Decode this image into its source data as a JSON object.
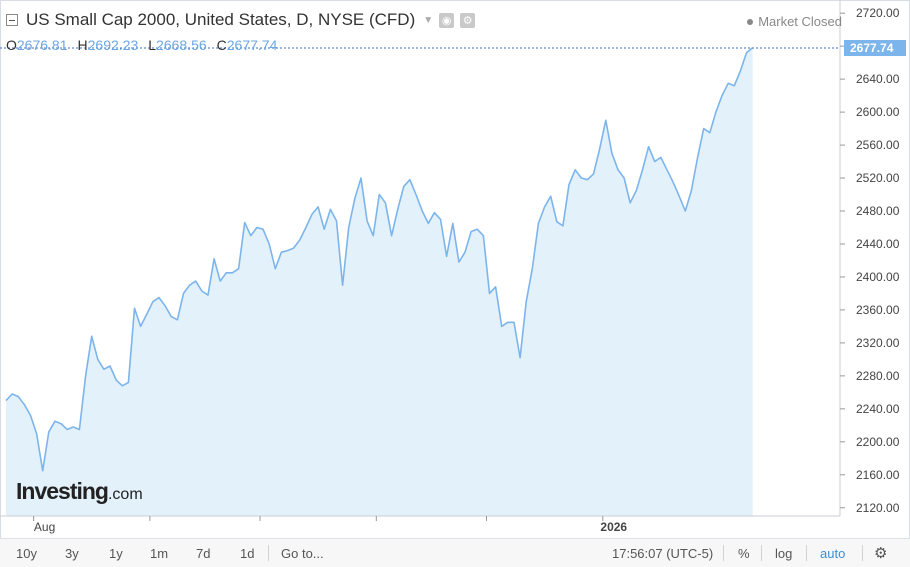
{
  "header": {
    "title": "US Small Cap 2000, United States, D, NYSE (CFD)",
    "market_status": "Market Closed",
    "ohlc": [
      {
        "key": "O",
        "value": "2676.81"
      },
      {
        "key": "H",
        "value": "2692.23"
      },
      {
        "key": "L",
        "value": "2668.56"
      },
      {
        "key": "C",
        "value": "2677.74"
      }
    ]
  },
  "logo": {
    "main": "Investing",
    "suffix": ".com"
  },
  "toolbar": {
    "ranges": [
      "10y",
      "3y",
      "1y",
      "1m",
      "7d",
      "1d"
    ],
    "goto_label": "Go to...",
    "time": "17:56:07 (UTC-5)",
    "percent_label": "%",
    "log_label": "log",
    "auto_label": "auto"
  },
  "colors": {
    "line": "#7cb5ec",
    "fill": "#e3f1fb",
    "price_tag": "#7cb5ec",
    "auto": "#3a8fd9"
  },
  "chart_data": {
    "type": "area",
    "title": "US Small Cap 2000, United States, D, NYSE (CFD)",
    "xlabel": "",
    "ylabel": "",
    "ylim": [
      2110,
      2736
    ],
    "yticks": [
      2120,
      2160,
      2200,
      2240,
      2280,
      2320,
      2360,
      2400,
      2440,
      2480,
      2520,
      2560,
      2600,
      2640,
      2680,
      2720
    ],
    "ytick_labels": [
      "2120.00",
      "2160.00",
      "2200.00",
      "2240.00",
      "2280.00",
      "2320.00",
      "2360.00",
      "2400.00",
      "2440.00",
      "2480.00",
      "2520.00",
      "2560.00",
      "2600.00",
      "2640.00",
      "2680.00",
      "2720.00"
    ],
    "x_labels": [
      {
        "index": 5,
        "label": "Aug"
      },
      {
        "index": 98,
        "label": "2026"
      }
    ],
    "x_minor_ticks": [
      5,
      24,
      42,
      61,
      79,
      98
    ],
    "last_price": 2677.74,
    "last_price_label": "2677.74",
    "grid": false,
    "values": [
      2250,
      2258,
      2255,
      2245,
      2232,
      2210,
      2165,
      2212,
      2225,
      2222,
      2215,
      2218,
      2215,
      2280,
      2328,
      2300,
      2288,
      2292,
      2275,
      2268,
      2272,
      2362,
      2340,
      2355,
      2370,
      2375,
      2365,
      2352,
      2348,
      2380,
      2390,
      2395,
      2383,
      2378,
      2422,
      2395,
      2405,
      2405,
      2410,
      2466,
      2450,
      2460,
      2458,
      2440,
      2410,
      2430,
      2432,
      2435,
      2445,
      2460,
      2476,
      2485,
      2458,
      2482,
      2468,
      2390,
      2460,
      2495,
      2520,
      2468,
      2450,
      2500,
      2490,
      2450,
      2482,
      2510,
      2518,
      2500,
      2480,
      2465,
      2478,
      2470,
      2425,
      2465,
      2418,
      2430,
      2455,
      2458,
      2450,
      2380,
      2388,
      2340,
      2345,
      2345,
      2302,
      2370,
      2410,
      2465,
      2485,
      2498,
      2467,
      2462,
      2512,
      2530,
      2520,
      2518,
      2525,
      2555,
      2590,
      2550,
      2530,
      2520,
      2490,
      2505,
      2530,
      2558,
      2540,
      2545,
      2530,
      2515,
      2498,
      2480,
      2505,
      2545,
      2580,
      2575,
      2600,
      2620,
      2635,
      2632,
      2650,
      2672,
      2678
    ]
  }
}
